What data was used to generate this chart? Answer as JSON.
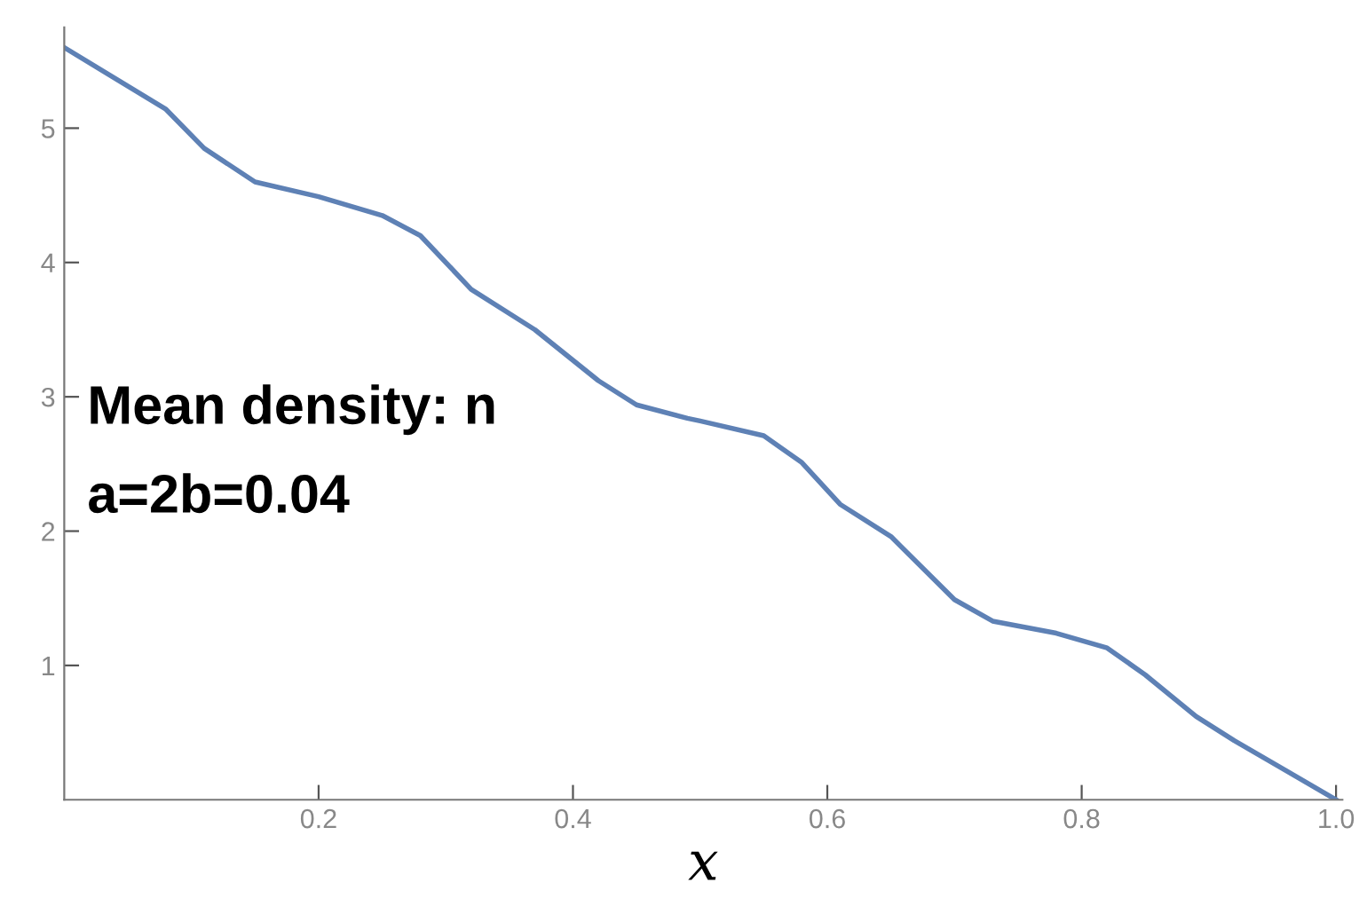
{
  "chart_data": {
    "type": "line",
    "xlabel": "x",
    "annotations": [
      "Mean density: n",
      "a=2b=0.04"
    ],
    "series": [
      {
        "color": "#5e81b5",
        "x": [
          0,
          0.04,
          0.08,
          0.11,
          0.15,
          0.2,
          0.25,
          0.28,
          0.32,
          0.37,
          0.42,
          0.45,
          0.49,
          0.5,
          0.55,
          0.58,
          0.61,
          0.65,
          0.7,
          0.73,
          0.78,
          0.82,
          0.85,
          0.89,
          0.92,
          0.96,
          1.0
        ],
        "values": [
          5.6,
          5.37,
          5.14,
          4.85,
          4.6,
          4.49,
          4.35,
          4.2,
          3.8,
          3.5,
          3.12,
          2.94,
          2.84,
          2.82,
          2.71,
          2.51,
          2.2,
          1.96,
          1.49,
          1.33,
          1.24,
          1.13,
          0.93,
          0.62,
          0.44,
          0.22,
          0
        ]
      }
    ],
    "xlim": [
      0,
      1.005
    ],
    "ylim": [
      0,
      5.75
    ],
    "xticks": [
      {
        "value": 0.2,
        "label": "0.2"
      },
      {
        "value": 0.4,
        "label": "0.4"
      },
      {
        "value": 0.6,
        "label": "0.6"
      },
      {
        "value": 0.8,
        "label": "0.8"
      },
      {
        "value": 1.0,
        "label": "1.0"
      }
    ],
    "yticks": [
      1,
      2,
      3,
      4,
      5
    ],
    "marker": "none",
    "line_style": "solid"
  }
}
